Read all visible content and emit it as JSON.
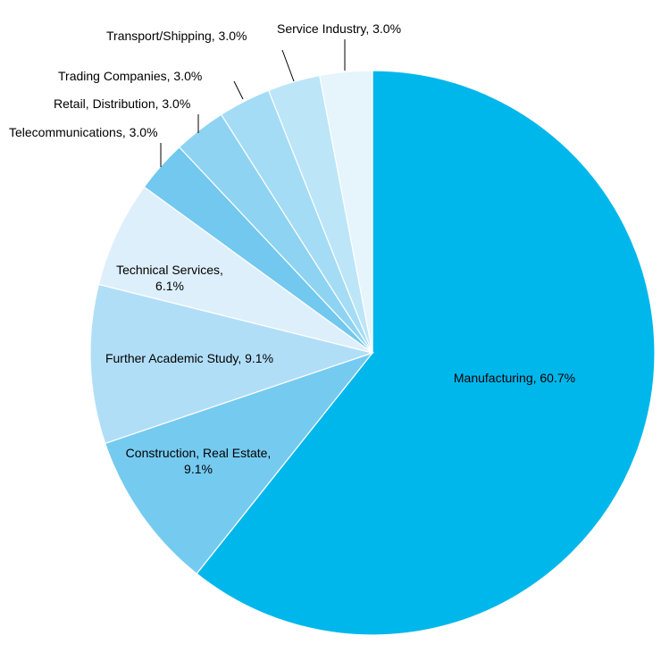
{
  "chart_data": {
    "type": "pie",
    "title": "",
    "slices": [
      {
        "label": "Manufacturing",
        "value": 60.7,
        "display": "Manufacturing, 60.7%",
        "color": "#00B7EC"
      },
      {
        "label": "Construction, Real Estate",
        "value": 9.1,
        "display": "Construction, Real Estate,\n9.1%",
        "color": "#75CAF0"
      },
      {
        "label": "Further Academic Study",
        "value": 9.1,
        "display": "Further Academic Study, 9.1%",
        "color": "#B1DEF7"
      },
      {
        "label": "Technical Services",
        "value": 6.1,
        "display": "Technical Services,\n6.1%",
        "color": "#DDEFFB"
      },
      {
        "label": "Telecommunications",
        "value": 3.0,
        "display": "Telecommunications, 3.0%",
        "color": "#72C8EE"
      },
      {
        "label": "Retail, Distribution",
        "value": 3.0,
        "display": "Retail, Distribution, 3.0%",
        "color": "#8FD3F2"
      },
      {
        "label": "Trading Companies",
        "value": 3.0,
        "display": "Trading Companies, 3.0%",
        "color": "#A4DCF5"
      },
      {
        "label": "Transport/Shipping",
        "value": 3.0,
        "display": "Transport/Shipping, 3.0%",
        "color": "#BCE5F8"
      },
      {
        "label": "Service Industry",
        "value": 3.0,
        "display": "Service Industry, 3.0%",
        "color": "#E6F4FC"
      }
    ],
    "start_angle_deg": 0,
    "direction": "clockwise"
  }
}
